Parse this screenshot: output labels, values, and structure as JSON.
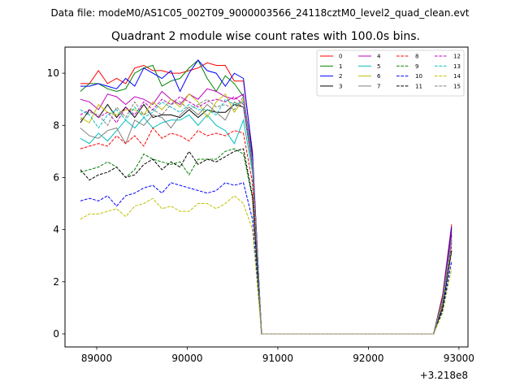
{
  "suptitle": "Data file: modeM0/AS1C05_002T09_9000003566_24118cztM0_level2_quad_clean.evt",
  "chart_data": {
    "type": "line",
    "title": "Quadrant 2 module wise count rates with 100.0s bins.",
    "xlabel": "",
    "ylabel": "",
    "x_offset_label": "+3.218e8",
    "xlim": [
      88650,
      93100
    ],
    "ylim": [
      -0.5,
      11.0
    ],
    "xticks": [
      89000,
      90000,
      91000,
      92000,
      93000
    ],
    "yticks": [
      0,
      2,
      4,
      6,
      8,
      10
    ],
    "grid": false,
    "legend_position": "upper right",
    "legend_columns": 4,
    "x": [
      88820,
      88920,
      89020,
      89120,
      89220,
      89320,
      89420,
      89520,
      89620,
      89720,
      89820,
      89920,
      90020,
      90120,
      90220,
      90320,
      90420,
      90520,
      90620,
      90720,
      90820,
      90920,
      91020,
      91120,
      91220,
      91320,
      91420,
      91520,
      91620,
      91720,
      91820,
      91920,
      92020,
      92120,
      92220,
      92320,
      92420,
      92520,
      92620,
      92720,
      92820,
      92920
    ],
    "series": [
      {
        "name": "0",
        "color": "#ff0000",
        "dash": "solid",
        "values": [
          9.6,
          9.6,
          10.1,
          9.6,
          9.8,
          9.6,
          10.2,
          10.3,
          10.1,
          10.1,
          10.0,
          10.0,
          10.1,
          10.2,
          10.4,
          10.3,
          10.3,
          9.7,
          9.7,
          7.0,
          0,
          0,
          0,
          0,
          0,
          0,
          0,
          0,
          0,
          0,
          0,
          0,
          0,
          0,
          0,
          0,
          0,
          0,
          0,
          0,
          1.5,
          4.2
        ]
      },
      {
        "name": "1",
        "color": "#008000",
        "dash": "solid",
        "values": [
          9.3,
          9.6,
          9.6,
          9.4,
          9.3,
          9.4,
          10.0,
          10.2,
          10.3,
          9.5,
          9.7,
          9.8,
          10.2,
          10.5,
          9.8,
          9.3,
          9.9,
          9.6,
          9.1,
          6.8,
          0,
          0,
          0,
          0,
          0,
          0,
          0,
          0,
          0,
          0,
          0,
          0,
          0,
          0,
          0,
          0,
          0,
          0,
          0,
          0,
          1.4,
          4.0
        ]
      },
      {
        "name": "2",
        "color": "#0000ff",
        "dash": "solid",
        "values": [
          9.5,
          9.5,
          9.6,
          9.5,
          9.4,
          9.8,
          9.5,
          10.2,
          10.0,
          9.8,
          10.1,
          9.3,
          10.0,
          10.5,
          10.1,
          10.0,
          9.5,
          10.0,
          9.8,
          6.9,
          0,
          0,
          0,
          0,
          0,
          0,
          0,
          0,
          0,
          0,
          0,
          0,
          0,
          0,
          0,
          0,
          0,
          0,
          0,
          0,
          1.4,
          4.1
        ]
      },
      {
        "name": "3",
        "color": "#000000",
        "dash": "solid",
        "values": [
          8.1,
          8.6,
          8.3,
          8.8,
          8.3,
          8.7,
          8.3,
          8.8,
          8.3,
          8.4,
          8.4,
          8.3,
          8.6,
          8.3,
          8.6,
          8.5,
          8.5,
          8.8,
          8.7,
          6.4,
          0,
          0,
          0,
          0,
          0,
          0,
          0,
          0,
          0,
          0,
          0,
          0,
          0,
          0,
          0,
          0,
          0,
          0,
          0,
          0,
          1.3,
          3.8
        ]
      },
      {
        "name": "4",
        "color": "#bf00bf",
        "dash": "solid",
        "values": [
          9.0,
          8.9,
          8.6,
          9.2,
          9.1,
          8.8,
          9.1,
          9.0,
          8.8,
          9.3,
          9.0,
          8.8,
          9.2,
          9.0,
          9.4,
          9.3,
          9.1,
          9.0,
          9.2,
          6.6,
          0,
          0,
          0,
          0,
          0,
          0,
          0,
          0,
          0,
          0,
          0,
          0,
          0,
          0,
          0,
          0,
          0,
          0,
          0,
          0,
          1.3,
          3.9
        ]
      },
      {
        "name": "5",
        "color": "#00bfbf",
        "dash": "solid",
        "values": [
          7.5,
          7.3,
          7.7,
          7.4,
          7.8,
          8.2,
          7.9,
          8.3,
          7.9,
          8.1,
          8.2,
          8.2,
          8.4,
          8.0,
          8.4,
          8.0,
          7.8,
          7.3,
          8.2,
          6.2,
          0,
          0,
          0,
          0,
          0,
          0,
          0,
          0,
          0,
          0,
          0,
          0,
          0,
          0,
          0,
          0,
          0,
          0,
          0,
          0,
          1.2,
          3.6
        ]
      },
      {
        "name": "6",
        "color": "#bfbf00",
        "dash": "solid",
        "values": [
          8.3,
          8.1,
          8.8,
          8.5,
          8.4,
          8.6,
          8.6,
          8.4,
          8.9,
          8.6,
          9.0,
          8.7,
          9.2,
          8.9,
          8.3,
          8.9,
          9.2,
          8.5,
          9.0,
          6.5,
          0,
          0,
          0,
          0,
          0,
          0,
          0,
          0,
          0,
          0,
          0,
          0,
          0,
          0,
          0,
          0,
          0,
          0,
          0,
          0,
          1.3,
          3.7
        ]
      },
      {
        "name": "7",
        "color": "#808080",
        "dash": "solid",
        "values": [
          7.9,
          7.6,
          7.5,
          7.8,
          7.9,
          7.3,
          8.2,
          8.0,
          8.4,
          8.3,
          7.9,
          8.4,
          8.7,
          8.4,
          8.8,
          8.5,
          8.2,
          8.9,
          8.7,
          6.4,
          0,
          0,
          0,
          0,
          0,
          0,
          0,
          0,
          0,
          0,
          0,
          0,
          0,
          0,
          0,
          0,
          0,
          0,
          0,
          0,
          1.2,
          3.7
        ]
      },
      {
        "name": "8",
        "color": "#ff0000",
        "dash": "dashed",
        "values": [
          7.1,
          7.2,
          7.3,
          7.2,
          7.6,
          7.3,
          7.6,
          7.2,
          7.9,
          7.5,
          7.7,
          7.6,
          7.4,
          7.8,
          7.6,
          7.7,
          7.6,
          7.8,
          7.7,
          5.8,
          0,
          0,
          0,
          0,
          0,
          0,
          0,
          0,
          0,
          0,
          0,
          0,
          0,
          0,
          0,
          0,
          0,
          0,
          0,
          0,
          1.1,
          3.4
        ]
      },
      {
        "name": "9",
        "color": "#008000",
        "dash": "dashed",
        "values": [
          6.2,
          6.3,
          6.4,
          6.6,
          6.4,
          6.0,
          6.3,
          6.9,
          6.7,
          6.6,
          6.5,
          6.6,
          6.1,
          6.7,
          6.7,
          6.7,
          7.0,
          7.1,
          6.9,
          5.2,
          0,
          0,
          0,
          0,
          0,
          0,
          0,
          0,
          0,
          0,
          0,
          0,
          0,
          0,
          0,
          0,
          0,
          0,
          0,
          0,
          1.0,
          3.2
        ]
      },
      {
        "name": "10",
        "color": "#0000ff",
        "dash": "dashed",
        "values": [
          5.1,
          5.2,
          5.1,
          5.3,
          4.9,
          5.3,
          5.4,
          5.6,
          5.7,
          5.4,
          5.8,
          5.7,
          5.6,
          5.5,
          5.4,
          5.5,
          5.8,
          5.7,
          5.8,
          4.4,
          0,
          0,
          0,
          0,
          0,
          0,
          0,
          0,
          0,
          0,
          0,
          0,
          0,
          0,
          0,
          0,
          0,
          0,
          0,
          0,
          0.9,
          2.8
        ]
      },
      {
        "name": "11",
        "color": "#000000",
        "dash": "dashed",
        "values": [
          6.3,
          5.9,
          6.1,
          6.2,
          6.4,
          6.0,
          6.1,
          6.5,
          6.7,
          6.3,
          6.6,
          6.4,
          7.0,
          6.5,
          6.7,
          6.6,
          6.8,
          7.0,
          7.1,
          5.3,
          0,
          0,
          0,
          0,
          0,
          0,
          0,
          0,
          0,
          0,
          0,
          0,
          0,
          0,
          0,
          0,
          0,
          0,
          0,
          0,
          1.0,
          3.2
        ]
      },
      {
        "name": "12",
        "color": "#bf00bf",
        "dash": "dashed",
        "values": [
          8.4,
          8.6,
          8.3,
          8.5,
          8.1,
          8.7,
          8.4,
          8.9,
          8.6,
          9.0,
          8.8,
          9.1,
          8.9,
          8.7,
          8.9,
          9.0,
          8.9,
          9.1,
          8.8,
          6.5,
          0,
          0,
          0,
          0,
          0,
          0,
          0,
          0,
          0,
          0,
          0,
          0,
          0,
          0,
          0,
          0,
          0,
          0,
          0,
          0,
          1.2,
          3.5
        ]
      },
      {
        "name": "13",
        "color": "#00bfbf",
        "dash": "dashed",
        "values": [
          8.6,
          8.4,
          7.9,
          8.4,
          8.6,
          8.2,
          8.7,
          8.3,
          8.5,
          8.9,
          8.7,
          8.5,
          8.8,
          8.6,
          8.6,
          8.4,
          9.0,
          8.8,
          8.9,
          6.6,
          0,
          0,
          0,
          0,
          0,
          0,
          0,
          0,
          0,
          0,
          0,
          0,
          0,
          0,
          0,
          0,
          0,
          0,
          0,
          0,
          1.2,
          3.6
        ]
      },
      {
        "name": "14",
        "color": "#bfbf00",
        "dash": "dashed",
        "values": [
          4.4,
          4.6,
          4.6,
          4.7,
          4.8,
          4.5,
          4.9,
          5.0,
          5.2,
          4.8,
          4.9,
          4.7,
          4.7,
          5.0,
          5.0,
          4.8,
          5.0,
          5.3,
          5.0,
          4.0,
          0,
          0,
          0,
          0,
          0,
          0,
          0,
          0,
          0,
          0,
          0,
          0,
          0,
          0,
          0,
          0,
          0,
          0,
          0,
          0,
          0.8,
          2.5
        ]
      },
      {
        "name": "15",
        "color": "#808080",
        "dash": "dashed",
        "values": [
          8.2,
          8.5,
          8.4,
          8.0,
          8.7,
          8.3,
          8.9,
          8.4,
          8.6,
          8.4,
          8.8,
          8.9,
          8.6,
          8.8,
          9.0,
          8.7,
          8.8,
          8.6,
          9.1,
          6.6,
          0,
          0,
          0,
          0,
          0,
          0,
          0,
          0,
          0,
          0,
          0,
          0,
          0,
          0,
          0,
          0,
          0,
          0,
          0,
          0,
          1.2,
          3.6
        ]
      }
    ]
  }
}
